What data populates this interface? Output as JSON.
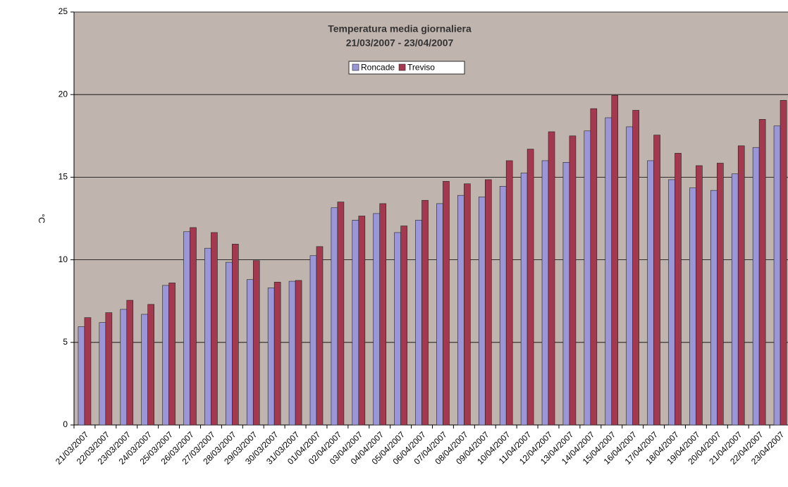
{
  "chart_data": {
    "type": "bar",
    "title": "Temperatura media giornaliera",
    "subtitle": "21/03/2007 - 23/04/2007",
    "y_label": "°C",
    "categories": [
      "21/03/2007",
      "22/03/2007",
      "23/03/2007",
      "24/03/2007",
      "25/03/2007",
      "26/03/2007",
      "27/03/2007",
      "28/03/2007",
      "29/03/2007",
      "30/03/2007",
      "31/03/2007",
      "01/04/2007",
      "02/04/2007",
      "03/04/2007",
      "04/04/2007",
      "05/04/2007",
      "06/04/2007",
      "07/04/2007",
      "08/04/2007",
      "09/04/2007",
      "10/04/2007",
      "11/04/2007",
      "12/04/2007",
      "13/04/2007",
      "14/04/2007",
      "15/04/2007",
      "16/04/2007",
      "17/04/2007",
      "18/04/2007",
      "19/04/2007",
      "20/04/2007",
      "21/04/2007",
      "22/04/2007",
      "23/04/2007"
    ],
    "series": [
      {
        "name": "Roncade",
        "color": "#9a96d8",
        "values": [
          5.95,
          6.2,
          7.0,
          6.7,
          8.45,
          11.7,
          10.7,
          9.85,
          8.8,
          8.3,
          8.7,
          10.25,
          13.15,
          12.4,
          12.8,
          11.65,
          12.4,
          13.4,
          13.9,
          13.8,
          14.45,
          15.25,
          16.0,
          15.9,
          17.8,
          18.6,
          18.05,
          16.0,
          14.85,
          14.35,
          14.2,
          15.2,
          16.8,
          18.1
        ]
      },
      {
        "name": "Treviso",
        "color": "#a3384f",
        "values": [
          6.5,
          6.8,
          7.55,
          7.3,
          8.6,
          11.95,
          11.65,
          10.95,
          9.95,
          8.65,
          8.75,
          10.8,
          13.5,
          12.65,
          13.4,
          12.05,
          13.6,
          14.75,
          14.6,
          14.85,
          16.0,
          16.7,
          17.75,
          17.5,
          19.15,
          19.95,
          19.05,
          17.55,
          16.45,
          15.7,
          15.85,
          16.9,
          18.5,
          19.65
        ]
      }
    ],
    "ylim": [
      0,
      25
    ],
    "yticks": [
      0,
      5,
      10,
      15,
      20,
      25
    ],
    "grid": true,
    "legend": "top"
  }
}
